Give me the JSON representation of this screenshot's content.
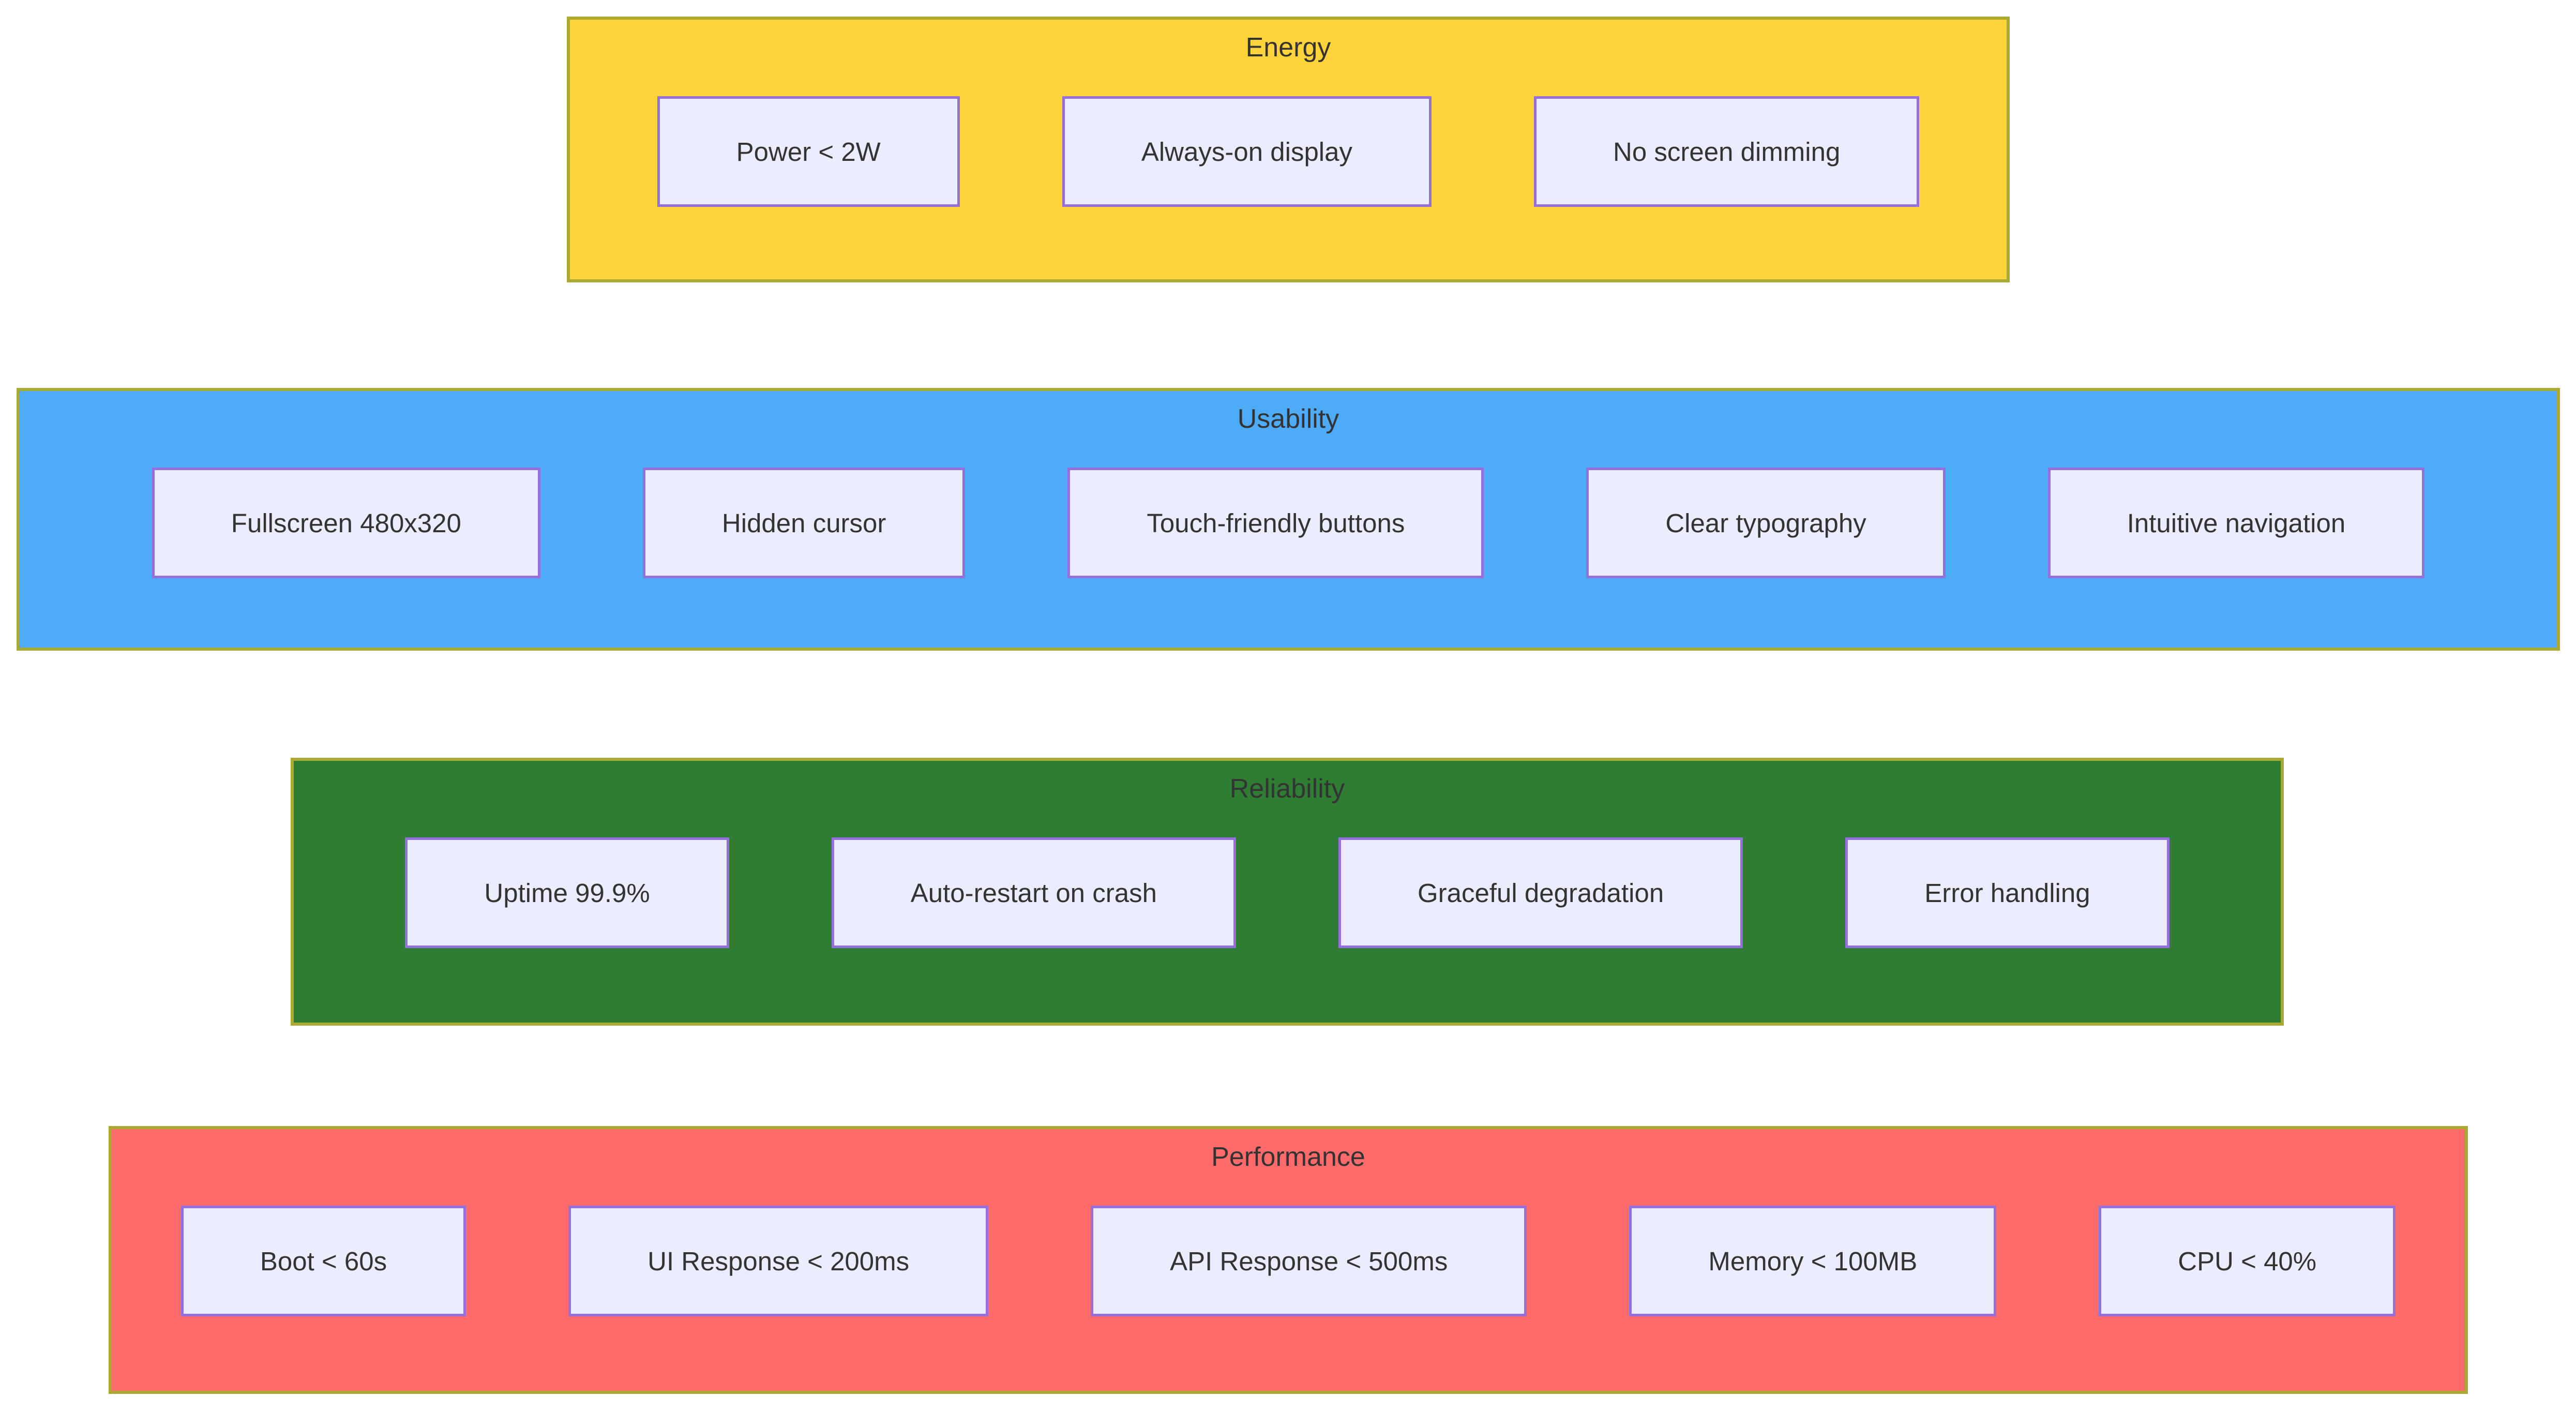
{
  "diagram": {
    "type": "grouped-requirements-flowchart",
    "colors": {
      "background": "#ffffff",
      "band_border": "#aaaa33",
      "node_fill": "#ececff",
      "node_border": "#9370db",
      "text": "#333333"
    },
    "groups": [
      {
        "id": "energy",
        "label": "Energy",
        "fill": "#ffd43b",
        "items": [
          "Power < 2W",
          "Always-on display",
          "No screen dimming"
        ]
      },
      {
        "id": "usability",
        "label": "Usability",
        "fill": "#4dabf7",
        "items": [
          "Fullscreen 480x320",
          "Hidden cursor",
          "Touch-friendly buttons",
          "Clear typography",
          "Intuitive navigation"
        ]
      },
      {
        "id": "reliability",
        "label": "Reliability",
        "fill": "#2e7d32",
        "items": [
          "Uptime 99.9%",
          "Auto-restart on crash",
          "Graceful degradation",
          "Error handling"
        ]
      },
      {
        "id": "performance",
        "label": "Performance",
        "fill": "#ff6b6b",
        "items": [
          "Boot < 60s",
          "UI Response < 200ms",
          "API Response < 500ms",
          "Memory < 100MB",
          "CPU < 40%"
        ]
      }
    ]
  }
}
